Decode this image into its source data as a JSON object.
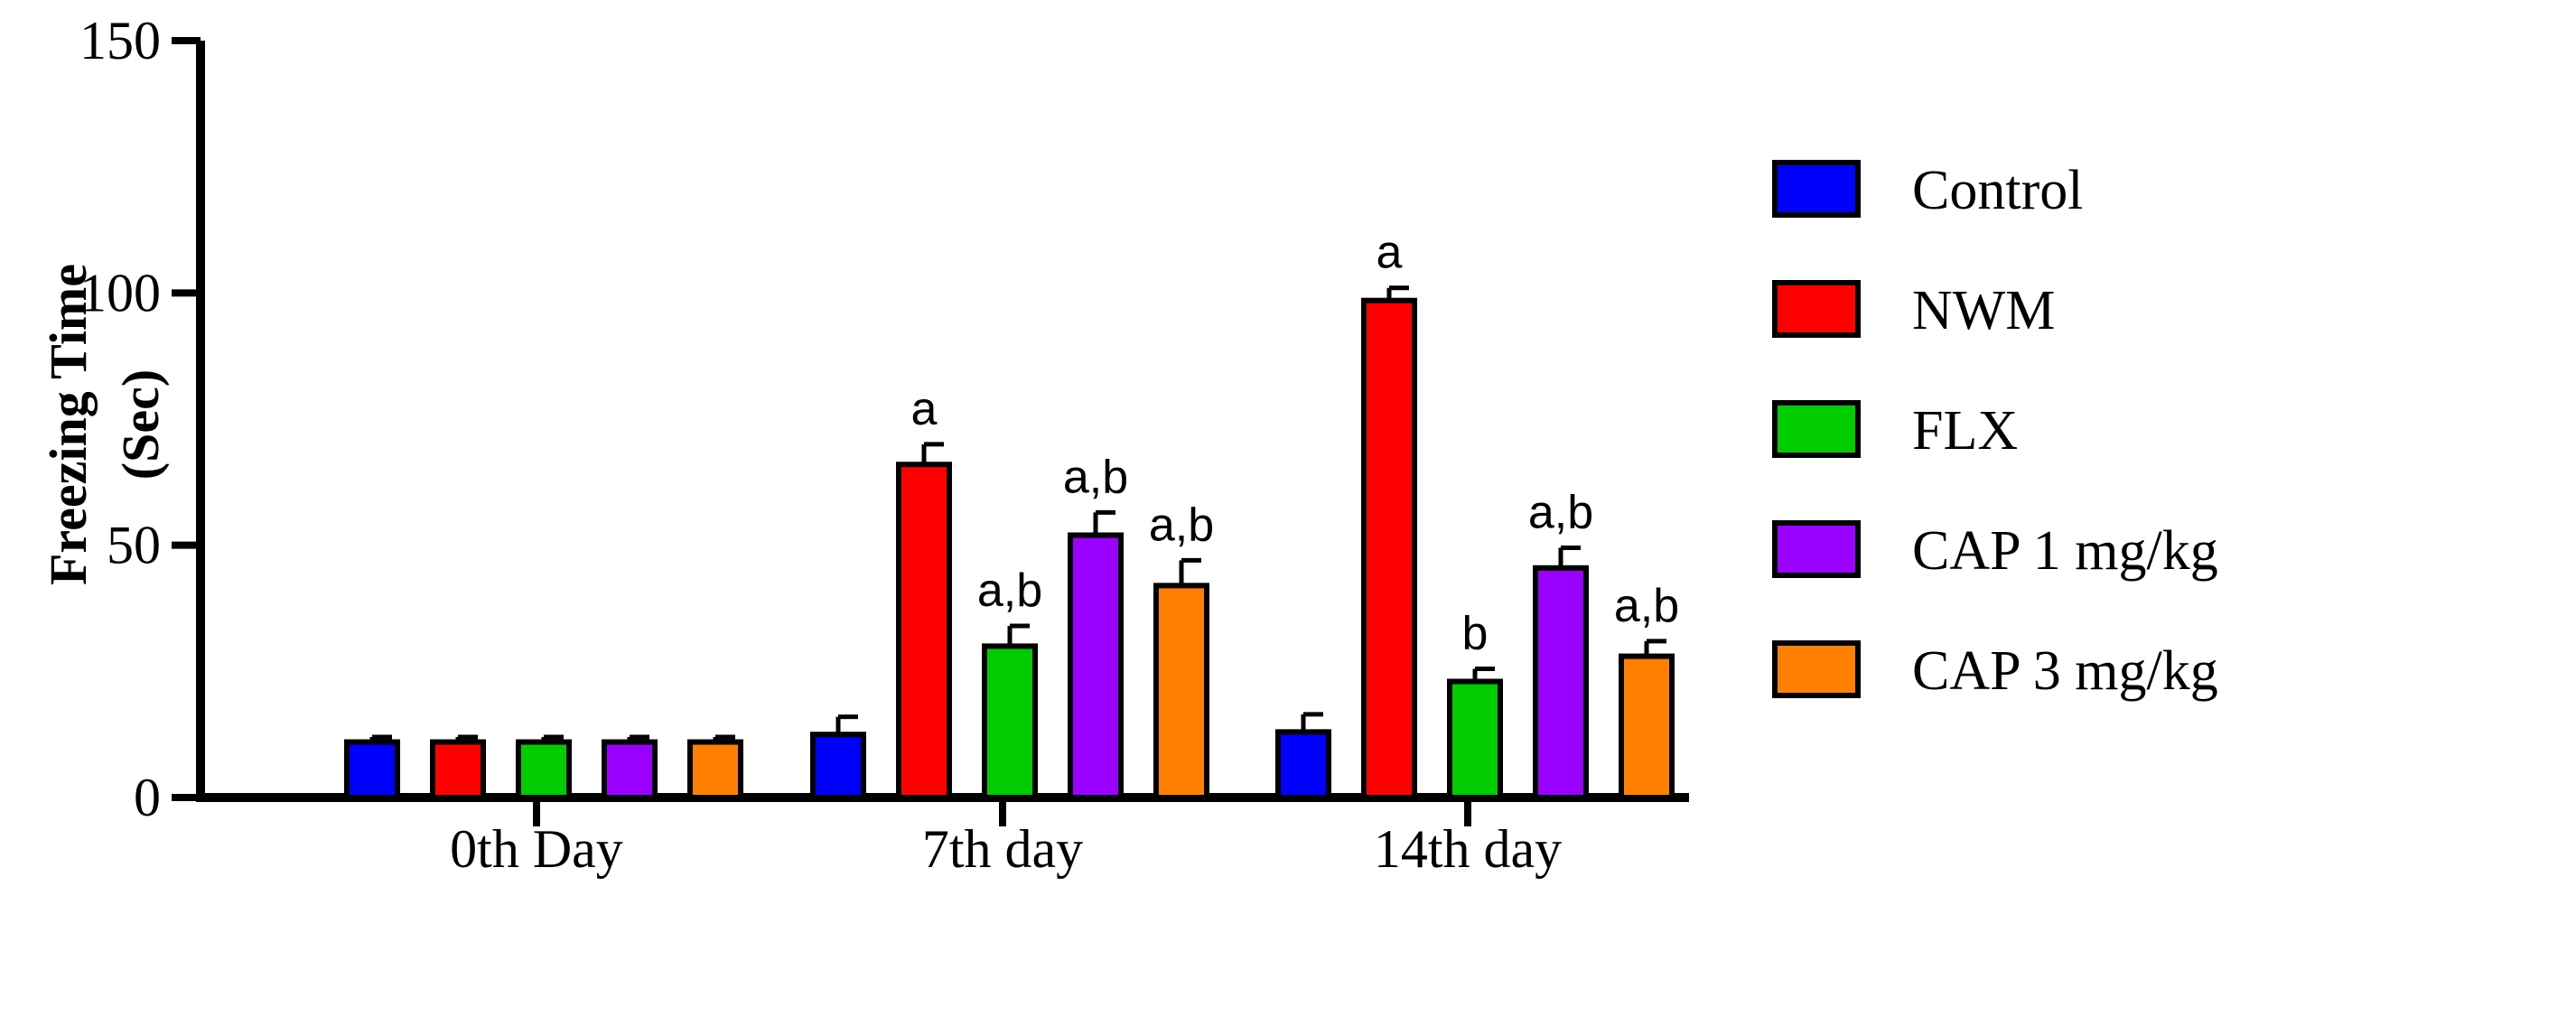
{
  "chart_data": {
    "type": "bar",
    "title": "",
    "xlabel": "",
    "ylabel": "Freezing Time",
    "ylabel_unit": "(Sec)",
    "ylim": [
      0,
      150
    ],
    "yticks": [
      0,
      50,
      100,
      150
    ],
    "grid": false,
    "legend_position": "right",
    "categories": [
      "0th Day",
      "7th day",
      "14th day"
    ],
    "series": [
      {
        "name": "Control",
        "color": "#0000FF",
        "values": [
          11,
          12.5,
          13
        ],
        "errors": [
          1,
          3.5,
          3.5
        ],
        "annotations": [
          "",
          "",
          ""
        ]
      },
      {
        "name": "NWM",
        "color": "#FF0000",
        "values": [
          11,
          66,
          98.5
        ],
        "errors": [
          1,
          4,
          2.5
        ],
        "annotations": [
          "",
          "a",
          "a"
        ]
      },
      {
        "name": "FLX",
        "color": "#00CC00",
        "values": [
          11,
          30,
          23
        ],
        "errors": [
          1,
          4,
          2.5
        ],
        "annotations": [
          "",
          "a,b",
          "b"
        ]
      },
      {
        "name": "CAP 1 mg/kg",
        "color": "#9900FF",
        "values": [
          11,
          52,
          45.5
        ],
        "errors": [
          1,
          4.5,
          4
        ],
        "annotations": [
          "",
          "a,b",
          "a,b"
        ]
      },
      {
        "name": "CAP 3 mg/kg",
        "color": "#FF8000",
        "values": [
          11,
          42,
          28
        ],
        "errors": [
          1,
          5,
          3
        ],
        "annotations": [
          "",
          "a,b",
          "a,b"
        ]
      }
    ]
  }
}
